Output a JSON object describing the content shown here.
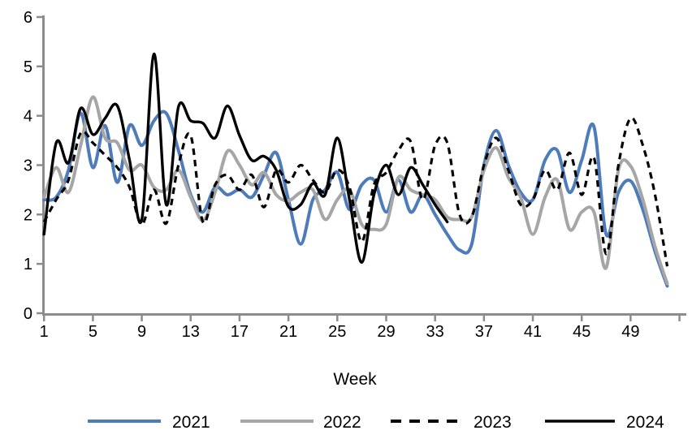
{
  "chart_data": {
    "type": "line",
    "title": "",
    "xlabel": "Week",
    "ylabel": "",
    "x_range": [
      1,
      52
    ],
    "ylim": [
      0,
      6
    ],
    "yticks": [
      0,
      1,
      2,
      3,
      4,
      5,
      6
    ],
    "xticks": [
      1,
      5,
      9,
      13,
      17,
      21,
      25,
      29,
      33,
      37,
      41,
      45,
      49
    ],
    "x_end_tick": 53,
    "grid": false,
    "legend_position": "bottom",
    "axis_color": "#8c8c8c",
    "series": [
      {
        "name": "2021",
        "color": "#4e7cbb",
        "style": "solid",
        "values": [
          2.3,
          2.35,
          2.9,
          4.05,
          2.95,
          3.8,
          2.65,
          3.8,
          3.4,
          3.9,
          4.05,
          3.3,
          2.4,
          2.05,
          2.55,
          2.4,
          2.5,
          2.35,
          2.8,
          3.25,
          2.3,
          1.4,
          2.3,
          2.5,
          2.85,
          2.1,
          2.6,
          2.7,
          2.05,
          2.7,
          2.05,
          2.4,
          2.0,
          1.6,
          1.28,
          1.4,
          3.0,
          3.7,
          3.0,
          2.45,
          2.3,
          3.1,
          3.3,
          2.45,
          3.1,
          3.78,
          1.6,
          2.45,
          2.68,
          2.1,
          1.25,
          0.55
        ]
      },
      {
        "name": "2022",
        "color": "#a6a6a6",
        "style": "solid",
        "values": [
          2.35,
          2.95,
          2.45,
          3.4,
          4.38,
          3.55,
          3.45,
          2.9,
          3.0,
          2.55,
          2.5,
          2.9,
          2.35,
          1.88,
          2.45,
          3.28,
          3.0,
          2.6,
          2.85,
          2.4,
          2.28,
          2.45,
          2.5,
          1.9,
          2.3,
          2.5,
          1.8,
          1.7,
          1.8,
          2.75,
          2.5,
          2.4,
          2.3,
          1.95,
          1.9,
          1.95,
          2.9,
          3.35,
          2.75,
          2.35,
          1.6,
          2.35,
          2.7,
          1.7,
          2.05,
          2.05,
          0.92,
          2.9,
          2.98,
          2.3,
          1.35,
          0.6
        ]
      },
      {
        "name": "2023",
        "color": "#000000",
        "style": "dashed",
        "values": [
          1.85,
          2.3,
          2.7,
          3.65,
          3.45,
          3.2,
          2.95,
          2.55,
          1.8,
          2.5,
          1.82,
          3.0,
          3.6,
          1.85,
          2.6,
          2.8,
          2.5,
          2.8,
          2.15,
          2.9,
          2.65,
          3.0,
          2.7,
          2.45,
          2.9,
          2.55,
          1.45,
          2.6,
          2.85,
          3.3,
          3.48,
          2.3,
          3.4,
          3.45,
          2.0,
          1.95,
          3.0,
          3.55,
          2.9,
          2.2,
          2.3,
          2.9,
          2.5,
          3.25,
          2.4,
          3.15,
          1.2,
          3.0,
          3.95,
          3.4,
          2.4,
          0.95
        ]
      },
      {
        "name": "2024",
        "color": "#000000",
        "style": "solid",
        "values": [
          1.6,
          3.45,
          3.05,
          4.15,
          3.62,
          3.95,
          4.2,
          3.1,
          1.9,
          5.25,
          2.2,
          4.18,
          3.9,
          3.85,
          3.55,
          4.2,
          3.6,
          3.1,
          3.18,
          2.9,
          2.16,
          2.2,
          2.63,
          2.4,
          3.55,
          2.3,
          1.03,
          2.4,
          3.0,
          2.4,
          2.95,
          2.6,
          2.2,
          1.85
        ]
      }
    ]
  },
  "legend": {
    "items": [
      "2021",
      "2022",
      "2023",
      "2024"
    ]
  }
}
